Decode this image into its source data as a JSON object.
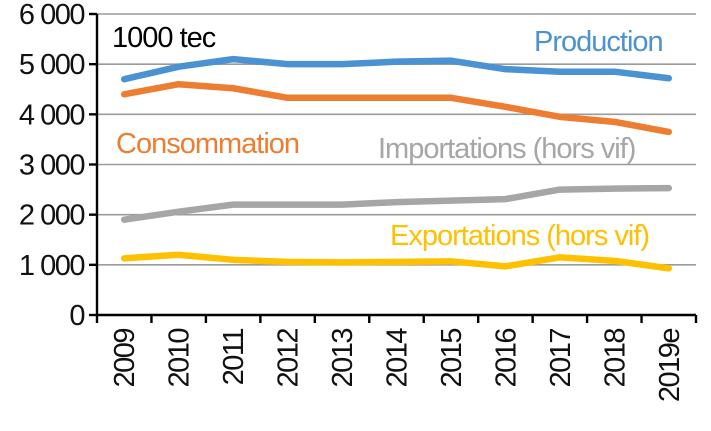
{
  "chart_data": {
    "type": "line",
    "unit_label": "1000 tec",
    "categories": [
      "2009",
      "2010",
      "2011",
      "2012",
      "2013",
      "2014",
      "2015",
      "2016",
      "2017",
      "2018",
      "2019e"
    ],
    "series": [
      {
        "name": "production",
        "label": "Production",
        "color": "#4a92d2",
        "values": [
          4700,
          4950,
          5100,
          5000,
          5000,
          5050,
          5070,
          4900,
          4850,
          4850,
          4720
        ]
      },
      {
        "name": "consommation",
        "label": "Consommation",
        "color": "#ed7d31",
        "values": [
          4400,
          4600,
          4520,
          4330,
          4330,
          4330,
          4330,
          4150,
          3950,
          3850,
          3650
        ]
      },
      {
        "name": "importations",
        "label": "Importations (hors vif)",
        "color": "#a6a6a6",
        "values": [
          1900,
          2060,
          2200,
          2200,
          2200,
          2250,
          2280,
          2310,
          2500,
          2520,
          2530
        ]
      },
      {
        "name": "exportations",
        "label": "Exportations (hors vif)",
        "color": "#ffc000",
        "values": [
          1130,
          1200,
          1100,
          1060,
          1050,
          1060,
          1070,
          970,
          1150,
          1080,
          930
        ]
      }
    ],
    "ylim": [
      0,
      6000
    ],
    "yticks": [
      0,
      1000,
      2000,
      3000,
      4000,
      5000,
      6000
    ],
    "ytick_labels": [
      "0",
      "1 000",
      "2 000",
      "3 000",
      "4 000",
      "5 000",
      "6 000"
    ],
    "grid": true,
    "legend_position": "inline-annotations"
  }
}
